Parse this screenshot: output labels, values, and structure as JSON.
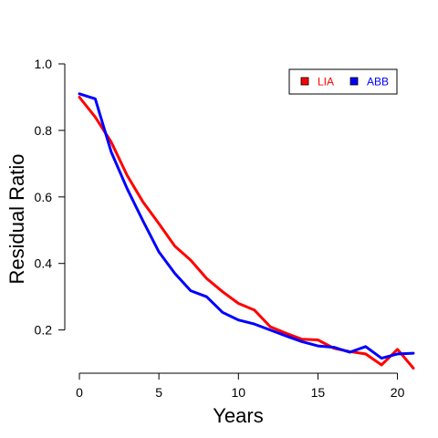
{
  "chart_data": {
    "type": "line",
    "title": "",
    "xlabel": "Years",
    "ylabel": "Residual Ratio",
    "xlim": [
      0,
      21
    ],
    "ylim": [
      0.07,
      1.0
    ],
    "x_ticks": [
      0,
      5,
      10,
      15,
      20
    ],
    "x_tick_labels": [
      "0",
      "5",
      "10",
      "15",
      "20"
    ],
    "y_ticks": [
      0.2,
      0.4,
      0.6,
      0.8,
      1.0
    ],
    "y_tick_labels": [
      "0.2",
      "0.4",
      "0.6",
      "0.8",
      "1.0"
    ],
    "grid": false,
    "legend": {
      "placement": "top-right",
      "horizontal": true
    },
    "x": [
      0,
      1,
      2,
      3,
      4,
      5,
      6,
      7,
      8,
      9,
      10,
      11,
      12,
      13,
      14,
      15,
      16,
      17,
      18,
      19,
      20,
      21
    ],
    "series": [
      {
        "name": "LIA",
        "color": "#ff0000",
        "values": [
          0.9,
          0.84,
          0.765,
          0.665,
          0.585,
          0.52,
          0.452,
          0.41,
          0.355,
          0.315,
          0.28,
          0.26,
          0.21,
          0.19,
          0.172,
          0.17,
          0.145,
          0.135,
          0.128,
          0.095,
          0.142,
          0.085
        ]
      },
      {
        "name": "ABB",
        "color": "#0000ff",
        "values": [
          0.91,
          0.895,
          0.735,
          0.625,
          0.528,
          0.435,
          0.37,
          0.318,
          0.3,
          0.253,
          0.23,
          0.218,
          0.2,
          0.182,
          0.165,
          0.152,
          0.148,
          0.133,
          0.15,
          0.115,
          0.128,
          0.13
        ]
      }
    ]
  }
}
